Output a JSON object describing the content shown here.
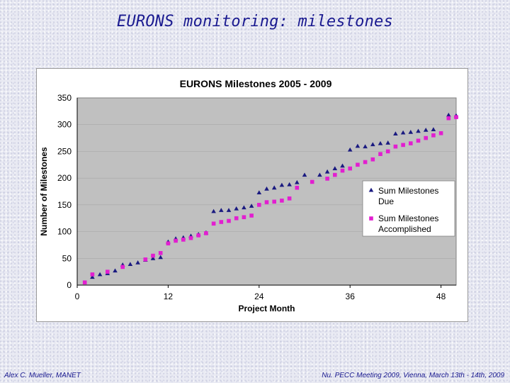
{
  "slide": {
    "title": "EURONS monitoring: milestones",
    "footer_left": "Alex C. Mueller, MANET",
    "footer_right": "Nu. PECC Meeting 2009, Vienna, March 13th - 14th, 2009"
  },
  "colors": {
    "due": "#1a1a80",
    "accomplished": "#e21fd0",
    "plot_bg": "#c0c0c0"
  },
  "chart_data": {
    "type": "scatter",
    "title": "EURONS Milestones 2005 - 2009",
    "xlabel": "Project Month",
    "ylabel": "Number of Milestones",
    "xlim": [
      0,
      50
    ],
    "ylim": [
      0,
      350
    ],
    "xticks": [
      0,
      12,
      24,
      36,
      48
    ],
    "yticks": [
      0,
      50,
      100,
      150,
      200,
      250,
      300,
      350
    ],
    "legend_position": "right",
    "series": [
      {
        "name": "Sum Milestones Due",
        "legend_lines": [
          "Sum Milestones",
          "Due"
        ],
        "marker": "triangle",
        "points": [
          [
            2,
            15
          ],
          [
            3,
            20
          ],
          [
            4,
            22
          ],
          [
            5,
            27
          ],
          [
            6,
            38
          ],
          [
            7,
            39
          ],
          [
            8,
            42
          ],
          [
            9,
            47
          ],
          [
            10,
            50
          ],
          [
            11,
            52
          ],
          [
            12,
            81
          ],
          [
            13,
            87
          ],
          [
            14,
            89
          ],
          [
            15,
            92
          ],
          [
            16,
            95
          ],
          [
            17,
            98
          ],
          [
            18,
            138
          ],
          [
            19,
            140
          ],
          [
            20,
            140
          ],
          [
            21,
            143
          ],
          [
            22,
            145
          ],
          [
            23,
            148
          ],
          [
            24,
            173
          ],
          [
            25,
            180
          ],
          [
            26,
            182
          ],
          [
            27,
            187
          ],
          [
            28,
            188
          ],
          [
            29,
            192
          ],
          [
            30,
            206
          ],
          [
            32,
            206
          ],
          [
            33,
            212
          ],
          [
            34,
            218
          ],
          [
            35,
            223
          ],
          [
            36,
            253
          ],
          [
            37,
            260
          ],
          [
            38,
            259
          ],
          [
            39,
            263
          ],
          [
            40,
            265
          ],
          [
            41,
            266
          ],
          [
            42,
            283
          ],
          [
            43,
            285
          ],
          [
            44,
            286
          ],
          [
            45,
            288
          ],
          [
            46,
            290
          ],
          [
            47,
            291
          ],
          [
            49,
            318
          ],
          [
            50,
            317
          ]
        ]
      },
      {
        "name": "Sum Milestones Accomplished",
        "legend_lines": [
          "Sum Milestones",
          "Accomplished"
        ],
        "marker": "square",
        "points": [
          [
            1,
            5
          ],
          [
            2,
            20
          ],
          [
            4,
            25
          ],
          [
            6,
            34
          ],
          [
            9,
            48
          ],
          [
            10,
            55
          ],
          [
            11,
            60
          ],
          [
            12,
            78
          ],
          [
            13,
            83
          ],
          [
            14,
            85
          ],
          [
            15,
            88
          ],
          [
            16,
            93
          ],
          [
            17,
            97
          ],
          [
            18,
            115
          ],
          [
            19,
            118
          ],
          [
            20,
            120
          ],
          [
            21,
            125
          ],
          [
            22,
            127
          ],
          [
            23,
            130
          ],
          [
            24,
            150
          ],
          [
            25,
            155
          ],
          [
            26,
            156
          ],
          [
            27,
            158
          ],
          [
            28,
            162
          ],
          [
            29,
            182
          ],
          [
            31,
            193
          ],
          [
            33,
            199
          ],
          [
            34,
            206
          ],
          [
            35,
            214
          ],
          [
            36,
            218
          ],
          [
            37,
            225
          ],
          [
            38,
            230
          ],
          [
            39,
            235
          ],
          [
            40,
            245
          ],
          [
            41,
            250
          ],
          [
            42,
            259
          ],
          [
            43,
            262
          ],
          [
            44,
            265
          ],
          [
            45,
            270
          ],
          [
            46,
            275
          ],
          [
            47,
            280
          ],
          [
            48,
            284
          ],
          [
            49,
            312
          ],
          [
            50,
            314
          ]
        ]
      }
    ]
  }
}
